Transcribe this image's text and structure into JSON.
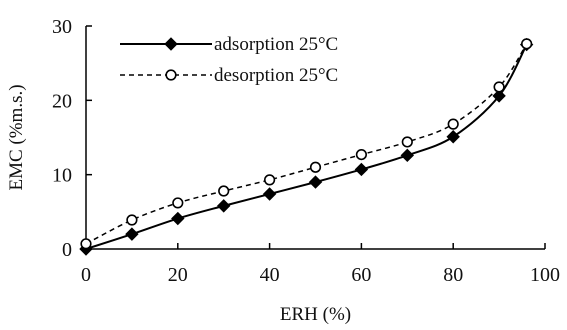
{
  "chart_data": {
    "type": "line",
    "title": "",
    "xlabel": "ERH (%)",
    "ylabel": "EMC (%m.s.)",
    "xlim": [
      0,
      100
    ],
    "ylim": [
      0,
      30
    ],
    "xticks": [
      0,
      20,
      40,
      60,
      80,
      100
    ],
    "yticks": [
      0,
      10,
      20,
      30
    ],
    "legend_position": "top-left",
    "grid": false,
    "series": [
      {
        "name": "adsorption 25°C",
        "marker": "filled-diamond",
        "line_style": "solid",
        "color": "#000000",
        "x": [
          0,
          10,
          20,
          30,
          40,
          50,
          60,
          70,
          80,
          90,
          96
        ],
        "y": [
          0.0,
          2.0,
          4.1,
          5.8,
          7.4,
          9.0,
          10.7,
          12.6,
          15.1,
          20.6,
          27.5
        ]
      },
      {
        "name": "desorption 25°C",
        "marker": "open-circle",
        "line_style": "dashed",
        "color": "#000000",
        "x": [
          0,
          10,
          20,
          30,
          40,
          50,
          60,
          70,
          80,
          90,
          96
        ],
        "y": [
          0.7,
          3.9,
          6.2,
          7.8,
          9.3,
          11.0,
          12.7,
          14.4,
          16.8,
          21.8,
          27.6
        ]
      }
    ]
  }
}
